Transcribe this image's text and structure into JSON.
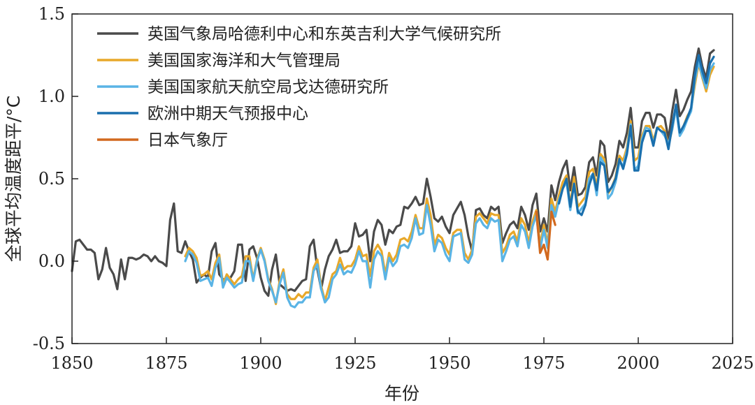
{
  "chart_data": {
    "type": "line",
    "title": "",
    "xlabel": "年份",
    "ylabel": "全球平均温度距平/°C",
    "xlim": [
      1850,
      2025
    ],
    "ylim": [
      -0.5,
      1.5
    ],
    "xticks": [
      1850,
      1875,
      1900,
      1925,
      1950,
      1975,
      2000,
      2025
    ],
    "yticks": [
      -0.5,
      0.0,
      0.5,
      1.0,
      1.5
    ],
    "ytick_labels": [
      "-0.5",
      "0.0",
      "0.5",
      "1.0",
      "1.5"
    ],
    "grid": false,
    "legend_position": "top-left",
    "series": [
      {
        "name": "英国气象局哈德利中心和东英吉利大学气候研究所",
        "color": "#4a4a4a",
        "start_year": 1850,
        "values": [
          -0.06,
          0.12,
          0.13,
          0.1,
          0.07,
          0.07,
          0.05,
          -0.11,
          -0.05,
          0.08,
          -0.04,
          -0.08,
          -0.17,
          0.01,
          -0.11,
          0.02,
          0.02,
          0.01,
          0.02,
          0.04,
          0.03,
          -0.0,
          0.03,
          -0.0,
          -0.01,
          -0.03,
          0.25,
          0.35,
          0.06,
          0.05,
          0.12,
          0.06,
          0.01,
          -0.13,
          -0.1,
          -0.08,
          -0.1,
          0.06,
          0.11,
          -0.08,
          -0.11,
          -0.11,
          -0.1,
          -0.06,
          0.1,
          0.1,
          -0.12,
          0.07,
          0.09,
          0.02,
          -0.1,
          -0.18,
          -0.21,
          -0.05,
          0.04,
          -0.14,
          -0.16,
          -0.18,
          -0.17,
          -0.18,
          -0.15,
          -0.12,
          -0.11,
          0.09,
          0.13,
          -0.05,
          -0.17,
          -0.05,
          0.03,
          0.07,
          0.13,
          0.05,
          0.06,
          0.06,
          0.09,
          0.23,
          0.15,
          0.16,
          0.19,
          0.0,
          0.18,
          0.25,
          0.22,
          0.1,
          0.19,
          0.17,
          0.21,
          0.22,
          0.33,
          0.32,
          0.35,
          0.39,
          0.34,
          0.35,
          0.5,
          0.39,
          0.26,
          0.24,
          0.27,
          0.21,
          0.17,
          0.28,
          0.32,
          0.36,
          0.28,
          0.15,
          0.06,
          0.31,
          0.32,
          0.28,
          0.26,
          0.33,
          0.31,
          0.33,
          0.11,
          0.17,
          0.22,
          0.24,
          0.2,
          0.33,
          0.28,
          0.19,
          0.34,
          0.41,
          0.18,
          0.26,
          0.18,
          0.46,
          0.37,
          0.48,
          0.56,
          0.61,
          0.43,
          0.57,
          0.4,
          0.41,
          0.45,
          0.6,
          0.63,
          0.52,
          0.73,
          0.7,
          0.48,
          0.52,
          0.59,
          0.73,
          0.69,
          0.78,
          0.93,
          0.69,
          0.69,
          0.85,
          0.9,
          0.9,
          0.81,
          0.89,
          0.89,
          0.87,
          0.74,
          0.91,
          1.04,
          0.88,
          0.92,
          0.98,
          1.03,
          1.18,
          1.29,
          1.18,
          1.11,
          1.26,
          1.28
        ]
      },
      {
        "name": "美国国家海洋和大气管理局",
        "color": "#e8a82a",
        "start_year": 1880,
        "values": [
          0.03,
          0.08,
          0.06,
          0.02,
          -0.09,
          -0.08,
          -0.06,
          -0.11,
          -0.01,
          0.04,
          -0.14,
          -0.08,
          -0.11,
          -0.14,
          -0.11,
          -0.09,
          0.03,
          0.03,
          -0.11,
          0.01,
          0.08,
          0.01,
          -0.11,
          -0.17,
          -0.26,
          -0.12,
          -0.05,
          -0.2,
          -0.23,
          -0.23,
          -0.2,
          -0.22,
          -0.19,
          -0.19,
          -0.04,
          0.01,
          -0.15,
          -0.24,
          -0.16,
          -0.08,
          -0.06,
          0.02,
          -0.05,
          -0.03,
          -0.03,
          0.01,
          0.09,
          0.03,
          0.04,
          -0.09,
          0.06,
          0.1,
          0.06,
          -0.08,
          0.05,
          0.0,
          0.04,
          0.13,
          0.14,
          0.12,
          0.18,
          0.28,
          0.2,
          0.2,
          0.38,
          0.28,
          0.1,
          0.16,
          0.14,
          0.08,
          0.04,
          0.17,
          0.19,
          0.19,
          0.05,
          0.01,
          0.07,
          0.27,
          0.29,
          0.26,
          0.23,
          0.29,
          0.28,
          0.28,
          0.05,
          0.09,
          0.16,
          0.18,
          0.12,
          0.26,
          0.22,
          0.11,
          0.24,
          0.31,
          0.1,
          0.22,
          0.1,
          0.38,
          0.3,
          0.4,
          0.48,
          0.52,
          0.34,
          0.51,
          0.33,
          0.36,
          0.39,
          0.54,
          0.56,
          0.45,
          0.65,
          0.62,
          0.41,
          0.45,
          0.51,
          0.64,
          0.61,
          0.69,
          0.85,
          0.61,
          0.63,
          0.76,
          0.82,
          0.82,
          0.73,
          0.81,
          0.82,
          0.79,
          0.7,
          0.8,
          0.93,
          0.78,
          0.82,
          0.88,
          0.92,
          1.07,
          1.2,
          1.11,
          1.03,
          1.13,
          1.18
        ]
      },
      {
        "name": "美国国家航天航空局戈达德研究所",
        "color": "#5ab4e5",
        "start_year": 1880,
        "values": [
          0.0,
          0.06,
          0.04,
          -0.01,
          -0.12,
          -0.11,
          -0.1,
          -0.15,
          -0.04,
          0.02,
          -0.16,
          -0.1,
          -0.13,
          -0.16,
          -0.14,
          -0.13,
          0.0,
          0.0,
          -0.12,
          0.0,
          0.07,
          0.0,
          -0.12,
          -0.18,
          -0.25,
          -0.14,
          -0.07,
          -0.22,
          -0.27,
          -0.28,
          -0.25,
          -0.25,
          -0.22,
          -0.22,
          -0.06,
          -0.02,
          -0.17,
          -0.25,
          -0.22,
          -0.11,
          -0.08,
          -0.02,
          -0.08,
          -0.06,
          -0.07,
          -0.02,
          0.06,
          0.0,
          0.0,
          -0.16,
          0.01,
          0.06,
          0.03,
          -0.11,
          0.02,
          -0.03,
          0.0,
          0.09,
          0.1,
          0.08,
          0.14,
          0.26,
          0.16,
          0.17,
          0.34,
          0.22,
          0.06,
          0.13,
          0.11,
          0.04,
          0.0,
          0.15,
          0.16,
          0.17,
          0.01,
          -0.01,
          0.04,
          0.23,
          0.26,
          0.22,
          0.2,
          0.26,
          0.24,
          0.25,
          0.0,
          0.06,
          0.13,
          0.15,
          0.09,
          0.22,
          0.18,
          0.08,
          0.21,
          0.28,
          0.07,
          0.19,
          0.08,
          0.34,
          0.27,
          0.37,
          0.44,
          0.48,
          0.31,
          0.47,
          0.29,
          0.32,
          0.35,
          0.5,
          0.53,
          0.4,
          0.63,
          0.59,
          0.38,
          0.41,
          0.48,
          0.6,
          0.58,
          0.67,
          0.83,
          0.55,
          0.58,
          0.74,
          0.81,
          0.8,
          0.71,
          0.81,
          0.79,
          0.76,
          0.71,
          0.8,
          0.93,
          0.76,
          0.8,
          0.86,
          0.91,
          1.1,
          1.21,
          1.12,
          1.05,
          1.16,
          1.2
        ]
      },
      {
        "name": "欧洲中期天气预报中心",
        "color": "#1a6fad",
        "start_year": 1979,
        "values": [
          0.35,
          0.44,
          0.5,
          0.33,
          0.47,
          0.3,
          0.28,
          0.34,
          0.46,
          0.53,
          0.43,
          0.6,
          0.58,
          0.42,
          0.45,
          0.5,
          0.62,
          0.56,
          0.65,
          0.82,
          0.55,
          0.55,
          0.72,
          0.79,
          0.79,
          0.7,
          0.81,
          0.79,
          0.78,
          0.68,
          0.82,
          0.95,
          0.78,
          0.82,
          0.87,
          0.93,
          1.13,
          1.25,
          1.15,
          1.08,
          1.2,
          1.24
        ]
      },
      {
        "name": "日本气象厅",
        "color": "#d2691e",
        "start_year": 1973,
        "values": [
          0.3,
          0.05,
          0.1,
          0.01,
          0.3,
          0.22
        ]
      }
    ]
  }
}
